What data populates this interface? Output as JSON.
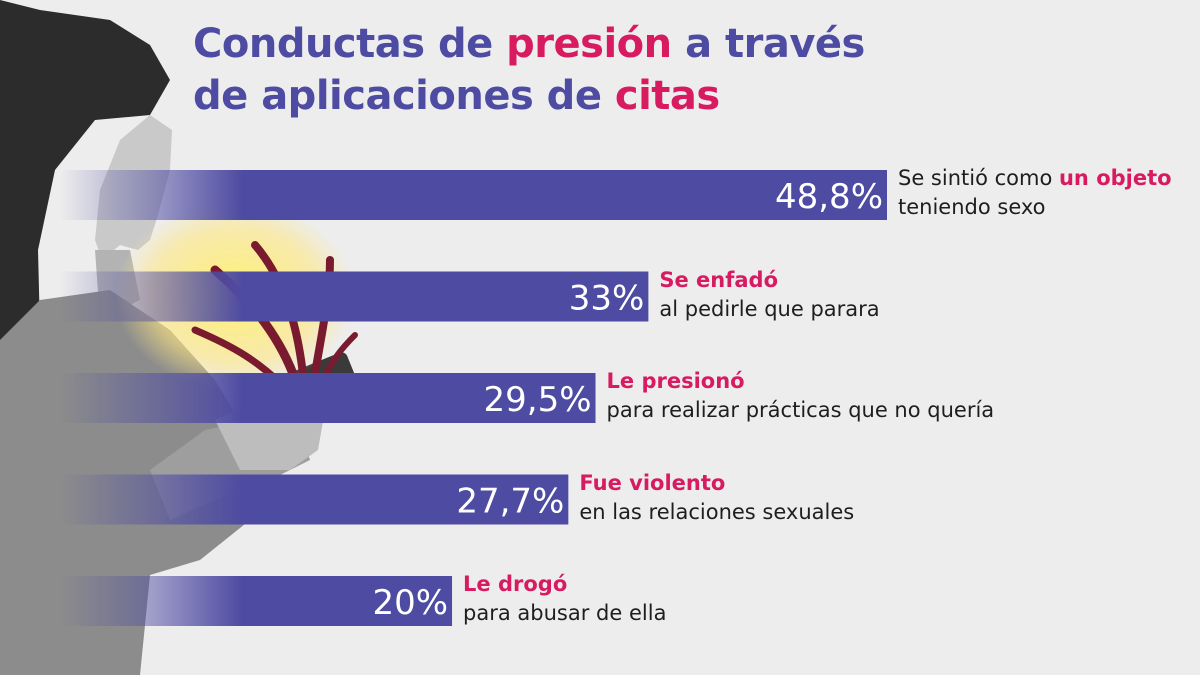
{
  "title": {
    "line1": [
      {
        "text": "Conductas de ",
        "highlight": false
      },
      {
        "text": "presión",
        "highlight": true
      },
      {
        "text": " a través",
        "highlight": false
      }
    ],
    "line2": [
      {
        "text": "de aplicaciones de ",
        "highlight": false
      },
      {
        "text": "citas",
        "highlight": true
      }
    ]
  },
  "colors": {
    "title": "#4e4ba2",
    "highlight": "#d81a60",
    "bar": "#4e4ba2",
    "background": "#ededed",
    "text": "#1e1e1e"
  },
  "chart_data": {
    "type": "bar",
    "orientation": "horizontal",
    "unit": "%",
    "xlim": [
      0,
      48.8
    ],
    "grid": false,
    "legend": "none",
    "categories": [
      "Se sintió como un objeto teniendo sexo",
      "Se enfadó al pedirle que parara",
      "Le presionó para realizar prácticas que no quería",
      "Fue violento en las relaciones sexuales",
      "Le drogó para abusar de ella"
    ],
    "values": [
      48.8,
      33,
      29.5,
      27.7,
      20
    ],
    "value_labels": [
      "48,8%",
      "33%",
      "29,5%",
      "27,7%",
      "20%"
    ],
    "labels": [
      {
        "lines": [
          [
            {
              "text": "Se sintió como ",
              "highlight": false
            },
            {
              "text": "un objeto",
              "highlight": true
            }
          ],
          [
            {
              "text": "teniendo sexo",
              "highlight": false
            }
          ]
        ]
      },
      {
        "lines": [
          [
            {
              "text": "Se enfadó",
              "highlight": true
            }
          ],
          [
            {
              "text": "al pedirle que parara",
              "highlight": false
            }
          ]
        ]
      },
      {
        "lines": [
          [
            {
              "text": "Le presionó",
              "highlight": true
            }
          ],
          [
            {
              "text": "para realizar prácticas que no quería",
              "highlight": false
            }
          ]
        ]
      },
      {
        "lines": [
          [
            {
              "text": "Fue violento",
              "highlight": true
            }
          ],
          [
            {
              "text": "en las relaciones sexuales",
              "highlight": false
            }
          ]
        ]
      },
      {
        "lines": [
          [
            {
              "text": "Le drogó",
              "highlight": true
            }
          ],
          [
            {
              "text": "para abusar de ella",
              "highlight": false
            }
          ]
        ]
      }
    ]
  }
}
